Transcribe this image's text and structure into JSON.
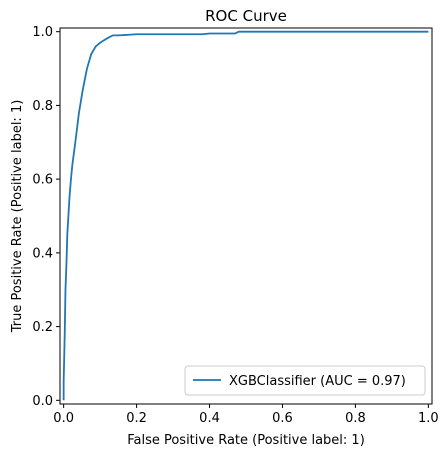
{
  "chart_data": {
    "type": "line",
    "title": "ROC Curve",
    "xlabel": "False Positive Rate (Positive label: 1)",
    "ylabel": "True Positive Rate (Positive label: 1)",
    "xlim": [
      -0.01,
      1.01
    ],
    "ylim": [
      -0.01,
      1.01
    ],
    "xticks": [
      0.0,
      0.2,
      0.4,
      0.6,
      0.8,
      1.0
    ],
    "yticks": [
      0.0,
      0.2,
      0.4,
      0.6,
      0.8,
      1.0
    ],
    "xtick_labels": [
      "0.0",
      "0.2",
      "0.4",
      "0.6",
      "0.8",
      "1.0"
    ],
    "ytick_labels": [
      "0.0",
      "0.2",
      "0.4",
      "0.6",
      "0.8",
      "1.0"
    ],
    "grid": false,
    "legend_position": "lower-right",
    "series": [
      {
        "name": "XGBClassifier (AUC = 0.97)",
        "color": "#1f77b4",
        "x": [
          0.0,
          0.0,
          0.003,
          0.005,
          0.008,
          0.01,
          0.013,
          0.016,
          0.02,
          0.024,
          0.028,
          0.032,
          0.037,
          0.042,
          0.047,
          0.052,
          0.058,
          0.064,
          0.07,
          0.076,
          0.082,
          0.088,
          0.094,
          0.1,
          0.108,
          0.116,
          0.125,
          0.135,
          0.15,
          0.2,
          0.3,
          0.38,
          0.4,
          0.47,
          0.48,
          0.6,
          0.8,
          1.0
        ],
        "y": [
          0.0,
          0.05,
          0.18,
          0.3,
          0.38,
          0.45,
          0.5,
          0.55,
          0.6,
          0.64,
          0.67,
          0.7,
          0.74,
          0.78,
          0.81,
          0.84,
          0.87,
          0.9,
          0.92,
          0.94,
          0.95,
          0.96,
          0.965,
          0.97,
          0.975,
          0.98,
          0.985,
          0.99,
          0.99,
          0.993,
          0.993,
          0.993,
          0.995,
          0.995,
          1.0,
          1.0,
          1.0,
          1.0
        ]
      }
    ]
  }
}
